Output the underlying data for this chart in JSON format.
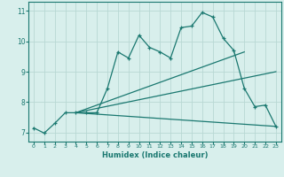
{
  "xlabel": "Humidex (Indice chaleur)",
  "ylabel": "",
  "xlim": [
    -0.5,
    23.5
  ],
  "ylim": [
    6.7,
    11.3
  ],
  "bg_color": "#d8efec",
  "grid_color": "#b8d8d4",
  "line_color": "#1a7870",
  "xticks": [
    0,
    1,
    2,
    3,
    4,
    5,
    6,
    7,
    8,
    9,
    10,
    11,
    12,
    13,
    14,
    15,
    16,
    17,
    18,
    19,
    20,
    21,
    22,
    23
  ],
  "yticks": [
    7,
    8,
    9,
    10,
    11
  ],
  "main_x": [
    0,
    1,
    2,
    3,
    4,
    5,
    6,
    7,
    8,
    9,
    10,
    11,
    12,
    13,
    14,
    15,
    16,
    17,
    18,
    19,
    20,
    21,
    22,
    23
  ],
  "main_y": [
    7.15,
    6.98,
    7.3,
    7.65,
    7.65,
    7.65,
    7.65,
    8.45,
    9.65,
    9.45,
    10.2,
    9.8,
    9.65,
    9.45,
    10.45,
    10.5,
    10.95,
    10.8,
    10.1,
    9.7,
    8.45,
    7.85,
    7.9,
    7.2
  ],
  "upper_line_x": [
    4,
    20
  ],
  "upper_line_y": [
    7.65,
    9.65
  ],
  "mid_line_x": [
    4,
    23
  ],
  "mid_line_y": [
    7.65,
    9.0
  ],
  "lower_line_x": [
    4,
    23
  ],
  "lower_line_y": [
    7.65,
    7.2
  ],
  "font_color": "#1a7870"
}
